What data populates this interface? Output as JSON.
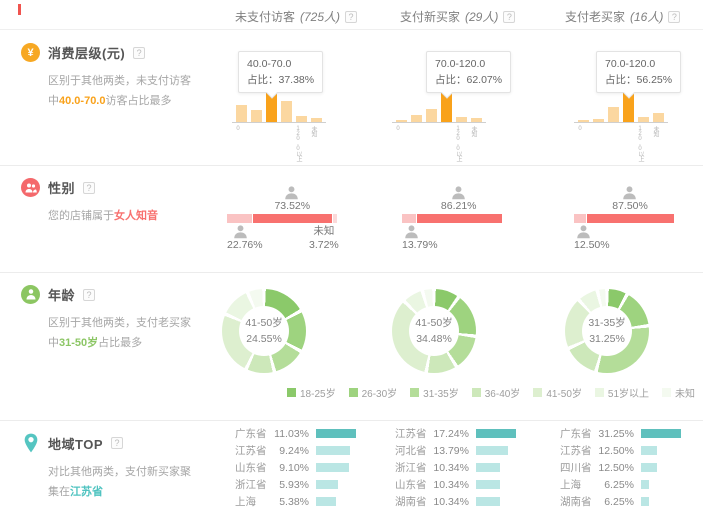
{
  "ui": {
    "help": "?"
  },
  "header": {
    "columns": [
      {
        "name": "未支付访客",
        "count": "(725人)"
      },
      {
        "name": "支付新买家",
        "count": "(29人)"
      },
      {
        "name": "支付老买家",
        "count": "(16人)"
      }
    ]
  },
  "consumption": {
    "title": "消费层级(元)",
    "desc_prefix": "区别于其他两类，未支付访客中",
    "desc_highlight": "40.0-70.0",
    "desc_suffix": "访客占比最多",
    "tooltip_label": "占比：",
    "colors": {
      "bar": "#fbd7a0",
      "bar_highlight": "#f9a21b",
      "highlight_text": "#f9a21b"
    },
    "charts": [
      {
        "tooltip_range": "40.0-70.0",
        "tooltip_pct": "37.38%",
        "bars": [
          17,
          12,
          34,
          21,
          6,
          4
        ],
        "highlight_index": 2,
        "axis_labels": [
          "0",
          "",
          "",
          "",
          "120.0以上",
          "未知"
        ]
      },
      {
        "tooltip_range": "70.0-120.0",
        "tooltip_pct": "62.07%",
        "bars": [
          2,
          7,
          13,
          34,
          5,
          4
        ],
        "highlight_index": 3,
        "axis_labels": [
          "0",
          "",
          "",
          "",
          "120.0以上",
          "未知"
        ]
      },
      {
        "tooltip_range": "70.0-120.0",
        "tooltip_pct": "56.25%",
        "bars": [
          2,
          3,
          15,
          34,
          5,
          9
        ],
        "highlight_index": 3,
        "axis_labels": [
          "0",
          "",
          "",
          "",
          "120.0以上",
          "未知"
        ]
      }
    ]
  },
  "gender": {
    "title": "性别",
    "desc_prefix": "您的店铺属于",
    "desc_highlight": "女人知音",
    "unknown_label": "未知",
    "colors": {
      "female": "#f8716f",
      "male": "#fac3c3",
      "unknown": "#fbdada",
      "highlight_text": "#f8716f",
      "icon": "#bcbcbc"
    },
    "charts": [
      {
        "female": "73.52%",
        "male": "22.76%",
        "unknown": "3.72%"
      },
      {
        "female": "86.21%",
        "male": "13.79%",
        "unknown": null
      },
      {
        "female": "87.50%",
        "male": "12.50%",
        "unknown": null
      }
    ]
  },
  "age": {
    "title": "年龄",
    "desc_prefix": "区别于其他两类，支付老买家中",
    "desc_highlight": "31-50岁",
    "desc_suffix": "占比最多",
    "colors": {
      "highlight_text": "#8cc665"
    },
    "legend": [
      {
        "label": "18-25岁",
        "color": "#8bc96a"
      },
      {
        "label": "26-30岁",
        "color": "#9ed37f"
      },
      {
        "label": "31-35岁",
        "color": "#b4dd99"
      },
      {
        "label": "36-40岁",
        "color": "#cde8ba"
      },
      {
        "label": "41-50岁",
        "color": "#ddefcf"
      },
      {
        "label": "51岁以上",
        "color": "#eaf6e2"
      },
      {
        "label": "未知",
        "color": "#f4faf0"
      }
    ],
    "donuts": [
      {
        "center_label": "41-50岁",
        "center_pct": "24.55%",
        "segments": [
          17,
          16,
          13,
          11,
          24.55,
          12,
          6.45
        ]
      },
      {
        "center_label": "41-50岁",
        "center_pct": "34.48%",
        "segments": [
          10,
          17,
          14,
          12,
          34.48,
          8,
          4.52
        ]
      },
      {
        "center_label": "31-35岁",
        "center_pct": "31.25%",
        "segments": [
          8,
          15,
          31.25,
          14,
          20,
          8,
          3.75
        ]
      }
    ]
  },
  "region": {
    "title": "地域TOP",
    "desc_prefix": "对比其他两类，支付新买家聚集在",
    "desc_highlight": "江苏省",
    "colors": {
      "bar_first": "#5fc0bd",
      "bar": "#bae6e4",
      "highlight_text": "#4fc3c0"
    },
    "lists": [
      [
        {
          "name": "广东省",
          "pct": "11.03%"
        },
        {
          "name": "江苏省",
          "pct": "9.24%"
        },
        {
          "name": "山东省",
          "pct": "9.10%"
        },
        {
          "name": "浙江省",
          "pct": "5.93%"
        },
        {
          "name": "上海",
          "pct": "5.38%"
        }
      ],
      [
        {
          "name": "江苏省",
          "pct": "17.24%"
        },
        {
          "name": "河北省",
          "pct": "13.79%"
        },
        {
          "name": "浙江省",
          "pct": "10.34%"
        },
        {
          "name": "山东省",
          "pct": "10.34%"
        },
        {
          "name": "湖南省",
          "pct": "10.34%"
        }
      ],
      [
        {
          "name": "广东省",
          "pct": "31.25%"
        },
        {
          "name": "江苏省",
          "pct": "12.50%"
        },
        {
          "name": "四川省",
          "pct": "12.50%"
        },
        {
          "name": "上海",
          "pct": "6.25%"
        },
        {
          "name": "湖南省",
          "pct": "6.25%"
        }
      ]
    ]
  }
}
